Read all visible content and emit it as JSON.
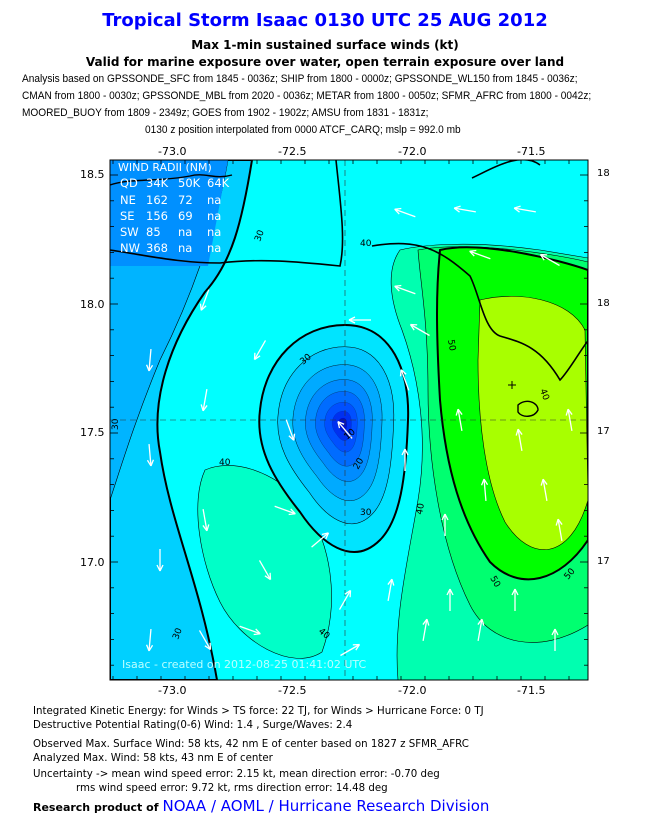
{
  "title": "Tropical Storm Isaac 0130 UTC 25 AUG 2012",
  "subtitle1": "Max 1-min sustained surface winds (kt)",
  "subtitle2": "Valid for marine exposure over water, open terrain exposure over land",
  "sources": [
    "Analysis based on GPSSONDE_SFC from 1845 - 0036z; SHIP from 1800 - 0000z; GPSSONDE_WL150 from 1845 - 0036z;",
    "CMAN from 1800 - 0030z; GPSSONDE_MBL from 2020 - 0036z; METAR from 1800 - 0050z; SFMR_AFRC from 1800 - 0042z;",
    "MOORED_BUOY from 1809 - 2349z; GOES from 1902 - 1902z; AMSU from 1831 - 1831z;"
  ],
  "position_line": "0130 z position interpolated from 0000 ATCF_CARQ; mslp = 992.0 mb",
  "axes": {
    "lon_ticks": [
      "-73.0",
      "-72.5",
      "-72.0",
      "-71.5"
    ],
    "lat_ticks": [
      "18.5",
      "18.0",
      "17.5",
      "17.0"
    ],
    "lat_ticks_right": [
      "18",
      "18",
      "17",
      "17"
    ]
  },
  "wind_radii": {
    "title": "WIND RADII (NM)",
    "header": [
      "QD",
      "34K",
      "50K",
      "64K"
    ],
    "rows": [
      [
        "NE",
        "162",
        "72",
        "na"
      ],
      [
        "SE",
        "156",
        "69",
        "na"
      ],
      [
        "SW",
        "85",
        "na",
        "na"
      ],
      [
        "NW",
        "368",
        "na",
        "na"
      ]
    ]
  },
  "contour_labels": [
    "10",
    "20",
    "30",
    "30",
    "30",
    "40",
    "40",
    "40",
    "40",
    "50",
    "50",
    "50",
    "30",
    "40",
    "30"
  ],
  "watermark": "Isaac - created on 2012-08-25 01:41:02 UTC",
  "footer": {
    "ike": "Integrated Kinetic Energy: for Winds > TS force: 22 TJ, for Winds > Hurricane Force: 0 TJ",
    "dpr": "Destructive Potential Rating(0-6)   Wind: 1.4 , Surge/Waves: 2.4",
    "observed": "Observed Max. Surface Wind: 58 kts, 42 nm E of center based on 1827 z SFMR_AFRC",
    "analyzed": "Analyzed Max. Wind: 58 kts, 43 nm  E of center",
    "uncertainty1": "Uncertainty -> mean wind speed error: 2.15 kt, mean direction error:  -0.70 deg",
    "uncertainty2": "rms wind speed error: 9.72 kt, rms direction error: 14.48 deg",
    "credit_prefix": "Research product of",
    "credit_org": "NOAA / AOML / Hurricane Research Division"
  },
  "colors": {
    "title": "#0000ff",
    "credit": "#0000ff",
    "arrows": "#ffffff",
    "coast": "#000000"
  }
}
